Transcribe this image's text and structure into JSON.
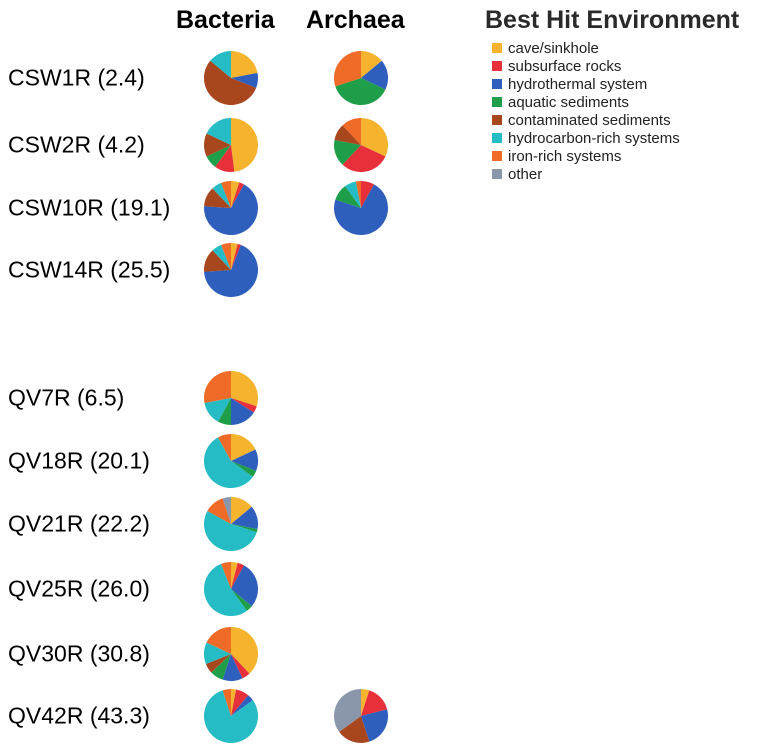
{
  "chart_data": {
    "type": "pie",
    "column_headers": [
      "Bacteria",
      "Archaea"
    ],
    "legend_title": "Best Hit Environment",
    "legend_placement": "top-right",
    "categories": [
      "cave/sinkhole",
      "subsurface rocks",
      "hydrothermal system",
      "aquatic sediments",
      "contaminated sediments",
      "hydrocarbon-rich systems",
      "iron-rich systems",
      "other"
    ],
    "colors": [
      "#f5b32e",
      "#e8303a",
      "#2f5fbd",
      "#1f9e4a",
      "#a8461d",
      "#25bcc6",
      "#f06a28",
      "#8a97aa"
    ],
    "samples": [
      {
        "label": "CSW1R (2.4)",
        "bacteria": [
          22,
          0,
          9,
          0,
          55,
          14,
          0,
          0
        ],
        "archaea": [
          14,
          0,
          18,
          38,
          0,
          0,
          30,
          0
        ]
      },
      {
        "label": "CSW2R (4.2)",
        "bacteria": [
          48,
          12,
          0,
          8,
          14,
          18,
          0,
          0
        ],
        "archaea": [
          32,
          30,
          0,
          16,
          10,
          0,
          12,
          0
        ]
      },
      {
        "label": "CSW10R (19.1)",
        "bacteria": [
          5,
          3,
          68,
          0,
          12,
          6,
          6,
          0
        ],
        "archaea": [
          0,
          8,
          72,
          10,
          0,
          7,
          3,
          0
        ]
      },
      {
        "label": "CSW14R (25.5)",
        "bacteria": [
          4,
          2,
          68,
          0,
          14,
          6,
          6,
          0
        ],
        "archaea": null
      },
      {
        "label": "QV7R (6.5)",
        "bacteria": [
          30,
          4,
          16,
          8,
          0,
          14,
          28,
          0
        ],
        "archaea": null
      },
      {
        "label": "QV18R (20.1)",
        "bacteria": [
          18,
          0,
          13,
          4,
          0,
          57,
          8,
          0
        ],
        "archaea": null
      },
      {
        "label": "QV21R (22.2)",
        "bacteria": [
          14,
          0,
          14,
          2,
          0,
          53,
          12,
          5
        ],
        "archaea": null
      },
      {
        "label": "QV25R (26.0)",
        "bacteria": [
          4,
          4,
          28,
          4,
          0,
          54,
          6,
          0
        ],
        "archaea": null
      },
      {
        "label": "QV30R (30.8)",
        "bacteria": [
          38,
          5,
          12,
          8,
          6,
          13,
          18,
          0
        ],
        "archaea": null
      },
      {
        "label": "QV42R (43.3)",
        "bacteria": [
          3,
          8,
          4,
          0,
          0,
          80,
          5,
          0
        ],
        "archaea": [
          5,
          16,
          24,
          0,
          20,
          0,
          0,
          35
        ]
      }
    ]
  }
}
